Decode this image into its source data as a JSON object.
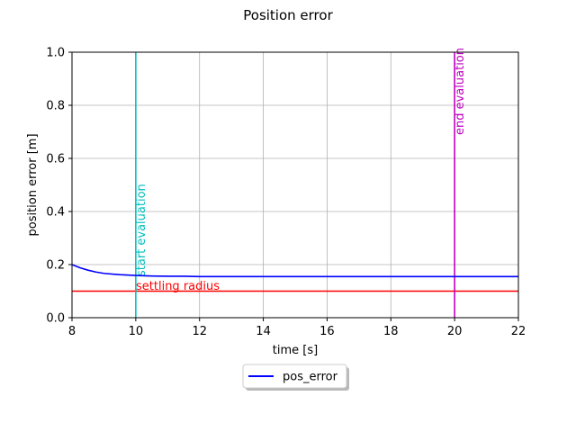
{
  "chart_data": {
    "type": "line",
    "title": "Position error",
    "xlabel": "time [s]",
    "ylabel": "position error [m]",
    "xlim": [
      8,
      22
    ],
    "ylim": [
      0,
      1.0
    ],
    "xticks": [
      8,
      10,
      12,
      14,
      16,
      18,
      20,
      22
    ],
    "yticks": [
      0.0,
      0.2,
      0.4,
      0.6,
      0.8,
      1.0
    ],
    "xtick_labels": [
      "8",
      "10",
      "12",
      "14",
      "16",
      "18",
      "20",
      "22"
    ],
    "ytick_labels": [
      "0.0",
      "0.2",
      "0.4",
      "0.6",
      "0.8",
      "1.0"
    ],
    "grid": true,
    "legend": {
      "placement": "below",
      "entries": [
        "pos_error"
      ]
    },
    "series": [
      {
        "name": "pos_error",
        "color": "#0000ff",
        "x": [
          8.0,
          8.25,
          8.5,
          8.75,
          9.0,
          9.5,
          10.0,
          10.5,
          11.0,
          11.5,
          12.0,
          13.0,
          14.0,
          16.0,
          18.0,
          20.0,
          22.0
        ],
        "y": [
          0.2,
          0.188,
          0.179,
          0.172,
          0.167,
          0.162,
          0.159,
          0.157,
          0.156,
          0.156,
          0.155,
          0.155,
          0.155,
          0.155,
          0.155,
          0.155,
          0.155
        ]
      }
    ],
    "annotations": [
      {
        "type": "hline",
        "y": 0.1,
        "color": "#ff0000",
        "label": "settling radius"
      },
      {
        "type": "vline",
        "x": 10,
        "color": "#00bfbf",
        "label": "start evaluation"
      },
      {
        "type": "vline",
        "x": 20,
        "color": "#bf00bf",
        "label": "end evaluation"
      }
    ]
  }
}
